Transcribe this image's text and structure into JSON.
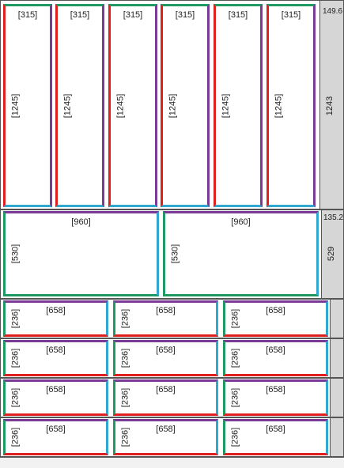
{
  "colors": {
    "top": "#7b3a96",
    "bottom_tall": "#30a8d0",
    "left_tall": "#e01f1f",
    "right_tall": "#7b3a96",
    "accent_green": "#1f9a62",
    "red": "#e01f1f",
    "cyan": "#30a8d0",
    "purple": "#7b3a96"
  },
  "section1": {
    "strip_top_value": "149.6",
    "strip_value": "1243",
    "panels": [
      {
        "w": "[315]",
        "h": "[1245]"
      },
      {
        "w": "[315]",
        "h": "[1245]"
      },
      {
        "w": "[315]",
        "h": "[1245]"
      },
      {
        "w": "[315]",
        "h": "[1245]"
      },
      {
        "w": "[315]",
        "h": "[1245]"
      },
      {
        "w": "[315]",
        "h": "[1245]"
      }
    ]
  },
  "section2": {
    "strip_top_value": "135.2",
    "strip_value": "529",
    "panels": [
      {
        "w": "[960]",
        "h": "[530]"
      },
      {
        "w": "[960]",
        "h": "[530]"
      }
    ]
  },
  "section3": {
    "rows": [
      [
        {
          "w": "[658]",
          "h": "[236]"
        },
        {
          "w": "[658]",
          "h": "[236]"
        },
        {
          "w": "[658]",
          "h": "[236]"
        }
      ],
      [
        {
          "w": "[658]",
          "h": "[236]"
        },
        {
          "w": "[658]",
          "h": "[236]"
        },
        {
          "w": "[658]",
          "h": "[236]"
        }
      ],
      [
        {
          "w": "[658]",
          "h": "[236]"
        },
        {
          "w": "[658]",
          "h": "[236]"
        },
        {
          "w": "[658]",
          "h": "[236]"
        }
      ],
      [
        {
          "w": "[658]",
          "h": "[236]"
        },
        {
          "w": "[658]",
          "h": "[236]"
        },
        {
          "w": "[658]",
          "h": "[236]"
        }
      ]
    ]
  }
}
